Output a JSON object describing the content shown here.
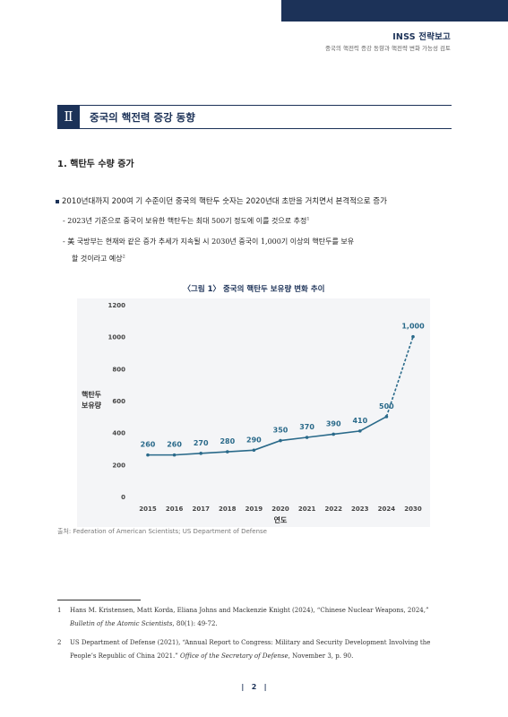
{
  "header": {
    "brand": "INSS 전략보고",
    "subtitle": "중국의 핵전력 증강 동향과 핵전략 변화 가능성 검토"
  },
  "section": {
    "number": "Ⅱ",
    "title": "중국의 핵전력 증강 동향"
  },
  "subsection": {
    "title": "1. 핵탄두 수량 증가"
  },
  "body": {
    "bullet": "2010년대까지 200여 기 수준이던 중국의 핵탄두 숫자는 2020년대 초반을 거치면서 본격적으로 증가",
    "dash1": "- 2023년 기준으로 중국이 보유한 핵탄두는 최대 500기 정도에 이를 것으로 추정",
    "dash1_sup": "1",
    "dash2_line1": "- 美 국방부는 현재와 같은 증가 추세가 지속될 시 2030년 중국이 1,000기 이상의 핵탄두를 보유",
    "dash2_line2": "할 것이라고 예상",
    "dash2_sup": "2"
  },
  "figure": {
    "title": "〈그림 1〉 중국의 핵탄두 보유량 변화 추이",
    "source": "출처: Federation of American Scientists; US Department of Defense"
  },
  "chart_data": {
    "type": "line",
    "x": [
      "2015",
      "2016",
      "2017",
      "2018",
      "2019",
      "2020",
      "2021",
      "2022",
      "2023",
      "2024",
      "2030"
    ],
    "values": [
      260,
      260,
      270,
      280,
      290,
      350,
      370,
      390,
      410,
      500,
      1000
    ],
    "value_labels": [
      "260",
      "260",
      "270",
      "280",
      "290",
      "350",
      "370",
      "390",
      "410",
      "500",
      "1,000"
    ],
    "projected_from_index": 9,
    "xlabel": "연도",
    "ylabel_line1": "핵탄두",
    "ylabel_line2": "보유량",
    "ylim": [
      0,
      1200
    ],
    "yticks": [
      "0",
      "200",
      "400",
      "600",
      "800",
      "1000",
      "1200"
    ],
    "grid": false,
    "color": "#2a6a8a",
    "background": "#f4f5f7"
  },
  "footnotes": [
    {
      "num": "1",
      "text": "Hans M. Kristensen, Matt Korda, Eliana Johns and Mackenzie Knight (2024), “Chinese Nuclear Weapons, 2024,” ",
      "italic": "Bulletin of the Atomic Scientists",
      "tail": ", 80(1): 49-72."
    },
    {
      "num": "2",
      "text": "US Department of Defense (2021), “Annual Report to Congress: Military and Security Development Involving the People’s Republic of China 2021.” ",
      "italic": "Office of the Secretary of Defense",
      "tail": ", November 3, p. 90."
    }
  ],
  "page": {
    "number": "2"
  }
}
